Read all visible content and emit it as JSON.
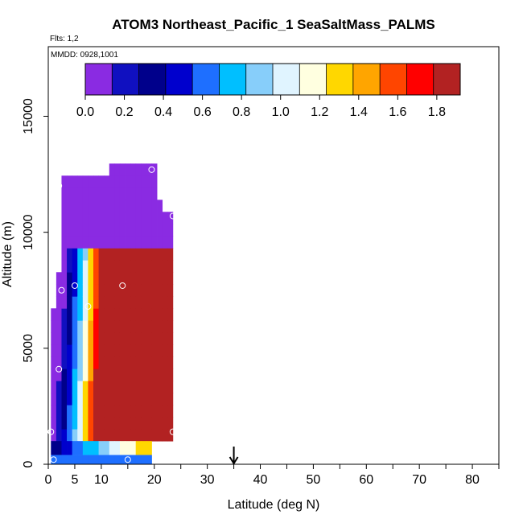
{
  "chart_data": {
    "type": "heatmap",
    "title": "ATOM3 Northeast_Pacific_1 SeaSaltMass_PALMS",
    "flights_label": "Flts: 1,2",
    "dates_label": "MMDD: 0928,1001",
    "xlabel": "Latitude (deg N)",
    "ylabel": "Altitude (m)",
    "xlim": [
      0,
      85
    ],
    "ylim": [
      0,
      18000
    ],
    "x_ticks": [
      0,
      5,
      10,
      20,
      30,
      40,
      50,
      60,
      70,
      80
    ],
    "x_minor_ticks": [
      15,
      25,
      35,
      45,
      55,
      65,
      75,
      85
    ],
    "y_ticks": [
      0,
      5000,
      10000,
      15000
    ],
    "colorbar": {
      "ticks": [
        "0.0",
        "0.2",
        "0.4",
        "0.6",
        "0.8",
        "1.0",
        "1.2",
        "1.4",
        "1.6",
        "1.8"
      ],
      "range": [
        0,
        1.92
      ],
      "colors": [
        "#8a2be2",
        "#1010c0",
        "#00008b",
        "#0000cd",
        "#1e6fff",
        "#00bfff",
        "#87cefa",
        "#e0f4ff",
        "#ffffe0",
        "#ffd700",
        "#ffa500",
        "#ff4500",
        "#ff0000",
        "#b22222"
      ]
    },
    "marker_arrow_latitude": 35,
    "sample_points": [
      {
        "lat": 0.5,
        "alt": 1400
      },
      {
        "lat": 1.0,
        "alt": 200
      },
      {
        "lat": 2.0,
        "alt": 12000
      },
      {
        "lat": 2.0,
        "alt": 4100
      },
      {
        "lat": 2.5,
        "alt": 7500
      },
      {
        "lat": 5.0,
        "alt": 7700
      },
      {
        "lat": 7.5,
        "alt": 6800
      },
      {
        "lat": 14.0,
        "alt": 7700
      },
      {
        "lat": 15.0,
        "alt": 200
      },
      {
        "lat": 19.5,
        "alt": 12700
      },
      {
        "lat": 23.5,
        "alt": 10700
      },
      {
        "lat": 23.5,
        "alt": 1400
      }
    ],
    "field_extent": {
      "lat_range": [
        0.5,
        23.5
      ],
      "alt_range": [
        0,
        12900
      ]
    }
  }
}
